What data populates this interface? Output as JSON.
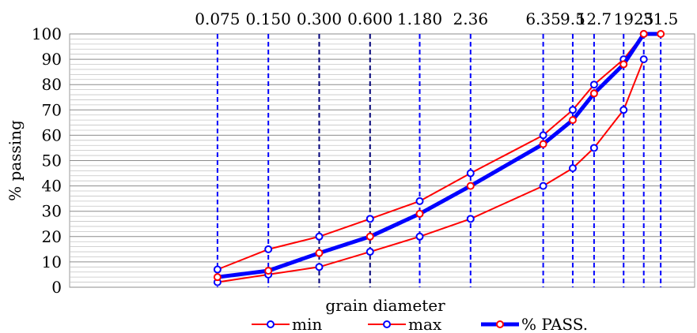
{
  "chart_data": {
    "type": "line",
    "xlabel": "grain diameter",
    "ylabel": "% passing",
    "ylim": [
      0,
      100
    ],
    "yticks": [
      0,
      10,
      20,
      30,
      40,
      50,
      60,
      70,
      80,
      90,
      100
    ],
    "x_scale": "log",
    "xlim": [
      0.01,
      50
    ],
    "x_tick_labels": [
      "0.075",
      "0.150",
      "0.300",
      "0.600",
      "1.180",
      "2.36",
      "6.35",
      "9.5",
      "12.7",
      "19",
      "25",
      "31.5"
    ],
    "x_values": [
      0.075,
      0.15,
      0.3,
      0.6,
      1.18,
      2.36,
      6.35,
      9.5,
      12.7,
      19,
      25,
      31.5
    ],
    "grid": "horizontal minor lines every 2 units; vertical dashed blue lines at sieve sizes",
    "legend_position": "bottom",
    "series": [
      {
        "name": "min",
        "color": "#ff0000",
        "marker_color": "#0000ff",
        "line_width": "thin",
        "x": [
          0.075,
          0.15,
          0.3,
          0.6,
          1.18,
          2.36,
          6.35,
          9.5,
          12.7,
          19,
          25
        ],
        "y": [
          2,
          5,
          8,
          14,
          20,
          27,
          40,
          47,
          55,
          70,
          90
        ]
      },
      {
        "name": "max",
        "color": "#ff0000",
        "marker_color": "#0000ff",
        "line_width": "thin",
        "x": [
          0.075,
          0.15,
          0.3,
          0.6,
          1.18,
          2.36,
          6.35,
          9.5,
          12.7,
          19,
          25
        ],
        "y": [
          7,
          15,
          20,
          27,
          34,
          45,
          60,
          70,
          80,
          90,
          100
        ]
      },
      {
        "name": "% PASS.",
        "color": "#0000ff",
        "marker_color": "#ff0000",
        "line_width": "thick",
        "x": [
          0.075,
          0.15,
          0.3,
          0.6,
          1.18,
          2.36,
          6.35,
          9.5,
          12.7,
          19,
          25,
          31.5
        ],
        "y": [
          4,
          6.5,
          13.5,
          20,
          29,
          40,
          56.5,
          66,
          76.5,
          88,
          100,
          100
        ]
      }
    ]
  }
}
